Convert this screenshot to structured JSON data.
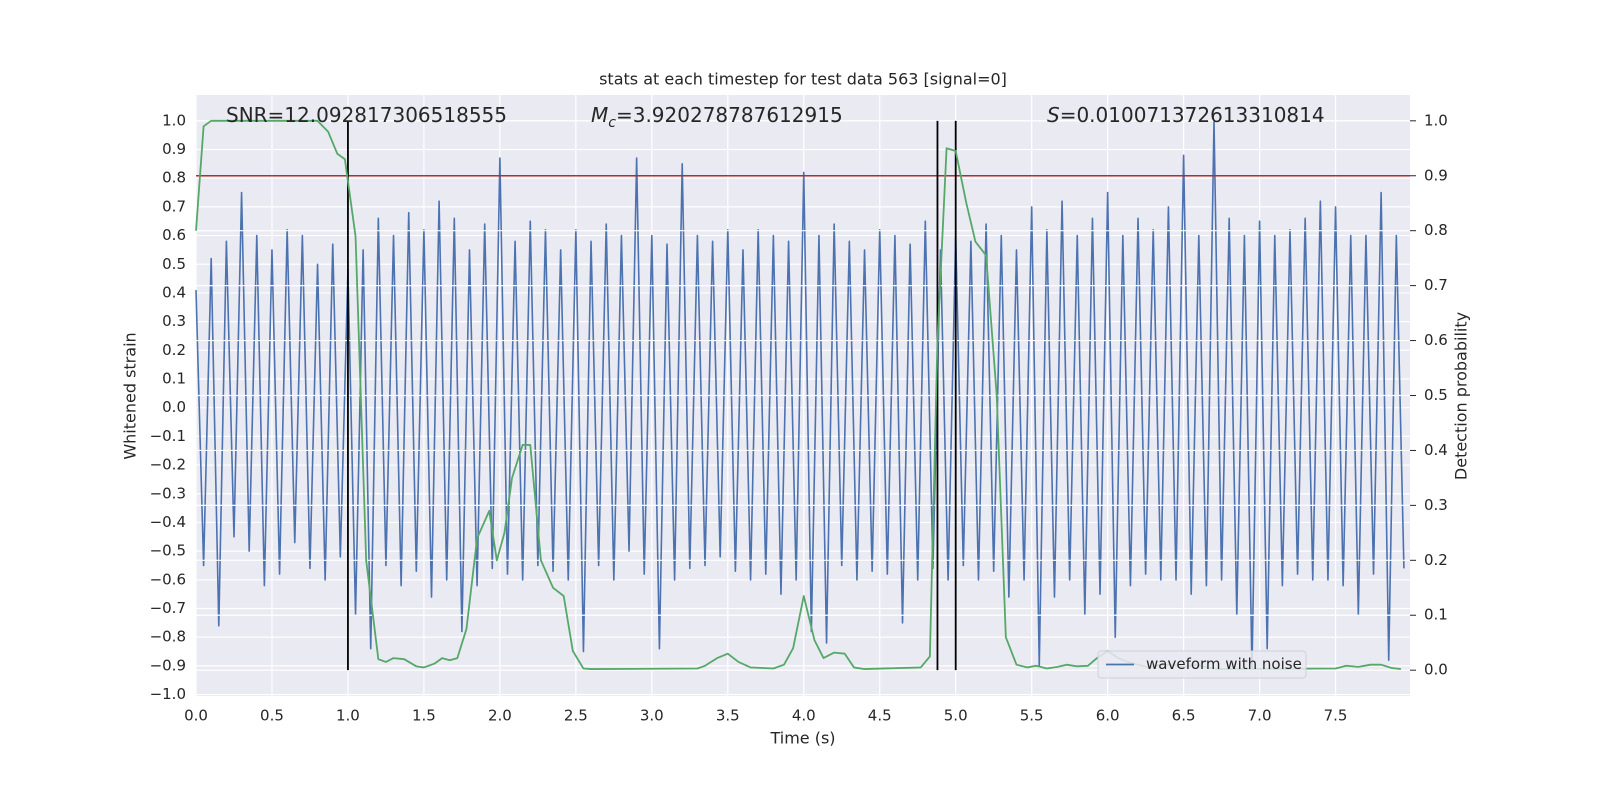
{
  "chart_data": {
    "type": "line",
    "title": "stats at each timestep for test data 563 [signal=0]",
    "xlabel": "Time (s)",
    "ylabel": "Whitened strain",
    "y2label": "Detection probability",
    "annotations": [
      {
        "text": "SNR=12.092817306518555"
      },
      {
        "symbol": "M",
        "subscript": "c",
        "text": "=3.920278787612915"
      },
      {
        "symbol": "S",
        "text": "=0.010071372613310814"
      }
    ],
    "xlim": [
      0,
      7.99
    ],
    "ylim": [
      -1.005,
      1.09
    ],
    "y2lim": [
      -0.047,
      1.047
    ],
    "xticks": [
      {
        "value": 0,
        "label": "0.0"
      },
      0.5,
      {
        "value": 1,
        "label": "1.0"
      },
      1.5,
      {
        "value": 2,
        "label": "2.0"
      },
      2.5,
      {
        "value": 3,
        "label": "3.0"
      },
      3.5,
      {
        "value": 4,
        "label": "4.0"
      },
      4.5,
      {
        "value": 5,
        "label": "5.0"
      },
      5.5,
      {
        "value": 6,
        "label": "6.0"
      },
      6.5,
      {
        "value": 7,
        "label": "7.0"
      },
      7.5
    ],
    "yticks": [
      {
        "value": 1,
        "label": "1.0"
      },
      0.9,
      0.8,
      0.7,
      0.6,
      0.5,
      0.4,
      0.3,
      0.2,
      0.1,
      {
        "value": 0,
        "label": "0.0"
      },
      {
        "value": -0.1,
        "label": "−0.1"
      },
      {
        "value": -0.2,
        "label": "−0.2"
      },
      {
        "value": -0.3,
        "label": "−0.3"
      },
      {
        "value": -0.4,
        "label": "−0.4"
      },
      {
        "value": -0.5,
        "label": "−0.5"
      },
      {
        "value": -0.6,
        "label": "−0.6"
      },
      {
        "value": -0.7,
        "label": "−0.7"
      },
      {
        "value": -0.8,
        "label": "−0.8"
      },
      {
        "value": -0.9,
        "label": "−0.9"
      },
      {
        "value": -1,
        "label": "−1.0"
      }
    ],
    "y2ticks": [
      {
        "value": 0,
        "label": "0.0"
      },
      0.1,
      0.2,
      0.3,
      0.4,
      0.5,
      0.6,
      0.7,
      0.8,
      0.9,
      {
        "value": 1,
        "label": "1.0"
      }
    ],
    "grid": true,
    "legend": "lower right",
    "series": [
      {
        "name": "waveform with noise",
        "color": "#4c72b0",
        "x": [
          0,
          0.05,
          0.1,
          0.15,
          0.2,
          0.25,
          0.3,
          0.35,
          0.4,
          0.45,
          0.5,
          0.55,
          0.6,
          0.65,
          0.7,
          0.75,
          0.8,
          0.85,
          0.9,
          0.95,
          1,
          1.05,
          1.1,
          1.15,
          1.2,
          1.25,
          1.3,
          1.35,
          1.4,
          1.45,
          1.5,
          1.55,
          1.6,
          1.65,
          1.7,
          1.75,
          1.8,
          1.85,
          1.9,
          1.95,
          2,
          2.05,
          2.1,
          2.15,
          2.2,
          2.25,
          2.3,
          2.35,
          2.4,
          2.45,
          2.5,
          2.55,
          2.6,
          2.65,
          2.7,
          2.75,
          2.8,
          2.85,
          2.9,
          2.95,
          3,
          3.05,
          3.1,
          3.15,
          3.2,
          3.25,
          3.3,
          3.35,
          3.4,
          3.45,
          3.5,
          3.55,
          3.6,
          3.65,
          3.7,
          3.75,
          3.8,
          3.85,
          3.9,
          3.95,
          4,
          4.05,
          4.1,
          4.15,
          4.2,
          4.25,
          4.3,
          4.35,
          4.4,
          4.45,
          4.5,
          4.55,
          4.6,
          4.65,
          4.7,
          4.75,
          4.8,
          4.85,
          4.9,
          4.95,
          5,
          5.05,
          5.1,
          5.15,
          5.2,
          5.25,
          5.3,
          5.35,
          5.4,
          5.45,
          5.5,
          5.55,
          5.6,
          5.65,
          5.7,
          5.75,
          5.8,
          5.85,
          5.9,
          5.95,
          6,
          6.05,
          6.1,
          6.15,
          6.2,
          6.25,
          6.3,
          6.35,
          6.4,
          6.45,
          6.5,
          6.55,
          6.6,
          6.65,
          6.7,
          6.75,
          6.8,
          6.85,
          6.9,
          6.95,
          7,
          7.05,
          7.1,
          7.15,
          7.2,
          7.25,
          7.3,
          7.35,
          7.4,
          7.45,
          7.5,
          7.55,
          7.6,
          7.65,
          7.7,
          7.75,
          7.8,
          7.85,
          7.9,
          7.95
        ],
        "values": [
          0.41,
          -0.55,
          0.52,
          -0.76,
          0.58,
          -0.45,
          0.75,
          -0.5,
          0.6,
          -0.62,
          0.55,
          -0.58,
          0.62,
          -0.47,
          0.6,
          -0.56,
          0.5,
          -0.6,
          0.57,
          -0.52,
          0.48,
          -0.72,
          0.55,
          -0.84,
          0.66,
          -0.55,
          0.6,
          -0.62,
          0.68,
          -0.57,
          0.62,
          -0.66,
          0.72,
          -0.6,
          0.66,
          -0.78,
          0.55,
          -0.62,
          0.64,
          -0.56,
          0.87,
          -0.58,
          0.58,
          -0.6,
          0.65,
          -0.55,
          0.62,
          -0.57,
          0.55,
          -0.6,
          0.62,
          -0.85,
          0.58,
          -0.55,
          0.64,
          -0.6,
          0.6,
          -0.5,
          0.87,
          -0.58,
          0.6,
          -0.84,
          0.57,
          -0.6,
          0.85,
          -0.56,
          0.6,
          -0.55,
          0.58,
          -0.52,
          0.62,
          -0.57,
          0.55,
          -0.6,
          0.62,
          -0.58,
          0.6,
          -0.65,
          0.58,
          -0.6,
          0.82,
          -0.78,
          0.6,
          -0.82,
          0.64,
          -0.55,
          0.58,
          -0.6,
          0.55,
          -0.57,
          0.62,
          -0.58,
          0.6,
          -0.75,
          0.57,
          -0.6,
          0.65,
          -0.56,
          0.55,
          -0.6,
          0.6,
          -0.55,
          0.58,
          -0.6,
          0.64,
          -0.57,
          0.6,
          -0.66,
          0.55,
          -0.6,
          0.7,
          -0.9,
          0.62,
          -0.66,
          0.72,
          -0.6,
          0.6,
          -0.72,
          0.66,
          -0.65,
          0.75,
          -0.8,
          0.6,
          -0.62,
          0.66,
          -0.58,
          0.62,
          -0.6,
          0.7,
          -0.6,
          0.88,
          -0.65,
          0.6,
          -0.62,
          1.0,
          -0.6,
          0.66,
          -0.72,
          0.6,
          -0.91,
          0.65,
          -0.84,
          0.6,
          -0.62,
          0.62,
          -0.58,
          0.66,
          -0.6,
          0.72,
          -0.6,
          0.7,
          -0.62,
          0.6,
          -0.72,
          0.6,
          -0.58,
          0.75,
          -0.88,
          0.6,
          -0.56
        ]
      },
      {
        "color": "#55a868",
        "axis": "y2",
        "x": [
          0,
          0.05,
          0.1,
          0.8,
          0.87,
          0.93,
          0.98,
          1.05,
          1.12,
          1.2,
          1.25,
          1.3,
          1.37,
          1.45,
          1.5,
          1.57,
          1.62,
          1.67,
          1.72,
          1.78,
          1.85,
          1.93,
          1.98,
          2.03,
          2.08,
          2.15,
          2.2,
          2.27,
          2.35,
          2.42,
          2.48,
          2.55,
          2.6,
          3.3,
          3.35,
          3.43,
          3.5,
          3.57,
          3.65,
          3.8,
          3.87,
          3.93,
          4.0,
          4.07,
          4.13,
          4.2,
          4.27,
          4.33,
          4.4,
          4.77,
          4.83,
          4.88,
          4.94,
          5.0,
          5.07,
          5.13,
          5.2,
          5.27,
          5.33,
          5.4,
          5.47,
          5.53,
          5.6,
          5.67,
          5.73,
          5.8,
          5.87,
          5.93,
          6.0,
          6.07,
          6.13,
          6.2,
          6.27,
          6.35,
          6.43,
          6.5,
          6.58,
          6.65,
          6.73,
          7.5,
          7.57,
          7.65,
          7.73,
          7.8,
          7.87,
          7.93
        ],
        "values": [
          0.8,
          0.99,
          1.0,
          1.0,
          0.98,
          0.94,
          0.93,
          0.79,
          0.2,
          0.02,
          0.015,
          0.022,
          0.02,
          0.007,
          0.005,
          0.012,
          0.022,
          0.018,
          0.022,
          0.075,
          0.24,
          0.29,
          0.2,
          0.25,
          0.35,
          0.41,
          0.41,
          0.2,
          0.15,
          0.135,
          0.035,
          0.003,
          0.002,
          0.003,
          0.008,
          0.022,
          0.03,
          0.015,
          0.005,
          0.003,
          0.01,
          0.04,
          0.135,
          0.055,
          0.022,
          0.032,
          0.03,
          0.005,
          0.002,
          0.005,
          0.025,
          0.6,
          0.95,
          0.945,
          0.85,
          0.78,
          0.755,
          0.5,
          0.06,
          0.01,
          0.005,
          0.008,
          0.003,
          0.006,
          0.01,
          0.007,
          0.008,
          0.022,
          0.035,
          0.022,
          0.015,
          0.01,
          0.005,
          0.01,
          0.01,
          0.005,
          0.01,
          0.005,
          0.002,
          0.003,
          0.008,
          0.006,
          0.01,
          0.01,
          0.004,
          0.002
        ]
      }
    ],
    "threshold": {
      "value": 0.9,
      "axis": "y2",
      "color": "#b0302a"
    },
    "vlines": {
      "x": [
        1.0,
        4.88,
        5.0
      ],
      "y2range": [
        0,
        1
      ],
      "color": "#000000"
    }
  }
}
